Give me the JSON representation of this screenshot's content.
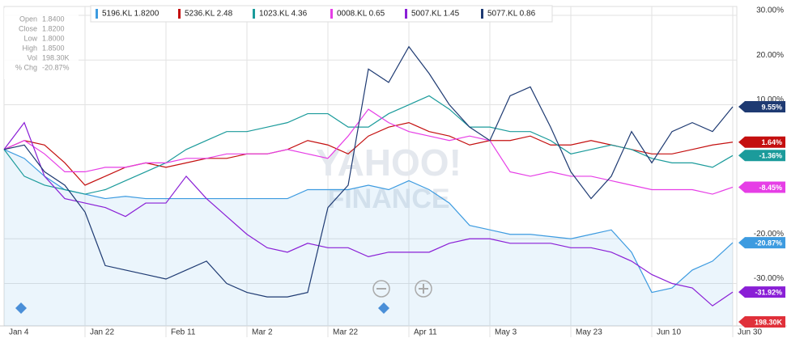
{
  "chart_data": {
    "type": "line",
    "info": [
      [
        "Open",
        "1.8400"
      ],
      [
        "Close",
        "1.8200"
      ],
      [
        "Low",
        "1.8000"
      ],
      [
        "High",
        "1.8500"
      ],
      [
        "Vol",
        "198.30K"
      ],
      [
        "% Chg",
        "-20.87%"
      ]
    ],
    "watermark": [
      "YAHOO!",
      "FINANCE"
    ],
    "volume_label": "198.30K",
    "categories": [
      "Jan 4",
      null,
      null,
      null,
      "Jan 22",
      null,
      null,
      null,
      "Feb 11",
      null,
      null,
      null,
      "Mar 2",
      null,
      null,
      null,
      "Mar 22",
      null,
      null,
      null,
      "Apr 11",
      null,
      null,
      null,
      "May 3",
      null,
      null,
      null,
      "May 23",
      null,
      null,
      null,
      "Jun 10",
      null,
      null,
      null,
      "Jun 30"
    ],
    "ylim": [
      -39.5,
      32
    ],
    "yticks": [
      {
        "value": 30,
        "label": "30.00%"
      },
      {
        "value": 20,
        "label": "20.00%"
      },
      {
        "value": 10,
        "label": "10.00%"
      },
      {
        "value": -20,
        "label": "-20.00%"
      },
      {
        "value": -30,
        "label": "-30.00%"
      }
    ],
    "grid": true,
    "area_series": 0,
    "series": [
      {
        "name": "5196.KL 1.8200",
        "color": "#3d9be0",
        "values": [
          0,
          -2,
          -6,
          -9,
          -10,
          -11,
          -10.5,
          -11,
          -11,
          -11,
          -11,
          -11,
          -11,
          -11,
          -11,
          -9,
          -9,
          -9,
          -8,
          -9,
          -7,
          -9,
          -12,
          -17,
          -18,
          -19,
          -19,
          -19.5,
          -20,
          -19,
          -18,
          -23,
          -32,
          -31,
          -27,
          -25,
          -20.87
        ],
        "value_labels": [
          null,
          null,
          null,
          null,
          null,
          null,
          null,
          null,
          null,
          null,
          null,
          null,
          null,
          null,
          null,
          null,
          null,
          null,
          null,
          null,
          null,
          null,
          null,
          null,
          null,
          null,
          null,
          null,
          null,
          null,
          null,
          null,
          null,
          null,
          null,
          null,
          "-20.87%"
        ]
      },
      {
        "name": "5236.KL 2.48",
        "color": "#c40f0f",
        "values": [
          0,
          2,
          1,
          -3,
          -8,
          -6,
          -4,
          -3,
          -4,
          -3,
          -2,
          -2,
          -1,
          -1,
          0,
          2,
          1,
          -1,
          3,
          5,
          6,
          4,
          3,
          1,
          2,
          2,
          3,
          1,
          1,
          2,
          1,
          0,
          -1,
          -1,
          0,
          1,
          1.64
        ],
        "value_labels": [
          null,
          null,
          null,
          null,
          null,
          null,
          null,
          null,
          null,
          null,
          null,
          null,
          null,
          null,
          null,
          null,
          null,
          null,
          null,
          null,
          null,
          null,
          null,
          null,
          null,
          null,
          null,
          null,
          null,
          null,
          null,
          null,
          null,
          null,
          null,
          null,
          "1.64%"
        ]
      },
      {
        "name": "1023.KL 4.36",
        "color": "#1b9b9b",
        "values": [
          0,
          -6,
          -8,
          -9,
          -10,
          -9,
          -7,
          -5,
          -3,
          0,
          2,
          4,
          4,
          5,
          6,
          8,
          8,
          5,
          5,
          8,
          10,
          12,
          9,
          5,
          5,
          4,
          4,
          2,
          -1,
          0,
          1,
          0,
          -2,
          -3,
          -3,
          -4,
          -1.36
        ],
        "value_labels": [
          null,
          null,
          null,
          null,
          null,
          null,
          null,
          null,
          null,
          null,
          null,
          null,
          null,
          null,
          null,
          null,
          null,
          null,
          null,
          null,
          null,
          null,
          null,
          null,
          null,
          null,
          null,
          null,
          null,
          null,
          null,
          null,
          null,
          null,
          null,
          null,
          "-1.36%"
        ]
      },
      {
        "name": "0008.KL 0.65",
        "color": "#e63ee6",
        "values": [
          0,
          2,
          -1,
          -5,
          -5,
          -4,
          -4,
          -3,
          -3,
          -2,
          -2,
          -1,
          -1,
          -1,
          0,
          -1,
          -2,
          3,
          9,
          6,
          4,
          3,
          2,
          3,
          2,
          -5,
          -6,
          -5,
          -6,
          -6,
          -7,
          -8,
          -9,
          -9,
          -9,
          -10,
          -8.45
        ],
        "value_labels": [
          null,
          null,
          null,
          null,
          null,
          null,
          null,
          null,
          null,
          null,
          null,
          null,
          null,
          null,
          null,
          null,
          null,
          null,
          null,
          null,
          null,
          null,
          null,
          null,
          null,
          null,
          null,
          null,
          null,
          null,
          null,
          null,
          null,
          null,
          null,
          null,
          "-8.45%"
        ]
      },
      {
        "name": "5007.KL 1.45",
        "color": "#8a1fd6",
        "values": [
          0,
          6,
          -6,
          -11,
          -12,
          -13,
          -15,
          -12,
          -12,
          -6,
          -11,
          -15,
          -19,
          -22,
          -23,
          -21,
          -22,
          -22,
          -24,
          -23,
          -23,
          -23,
          -21,
          -20,
          -20,
          -21,
          -21,
          -21,
          -22,
          -22,
          -23,
          -25,
          -28,
          -30,
          -31,
          -35,
          -31.92
        ],
        "value_labels": [
          null,
          null,
          null,
          null,
          null,
          null,
          null,
          null,
          null,
          null,
          null,
          null,
          null,
          null,
          null,
          null,
          null,
          null,
          null,
          null,
          null,
          null,
          null,
          null,
          null,
          null,
          null,
          null,
          null,
          null,
          null,
          null,
          null,
          null,
          null,
          null,
          "-31.92%"
        ]
      },
      {
        "name": "5077.KL 0.86",
        "color": "#1e3a72",
        "values": [
          0,
          1,
          -5,
          -8,
          -14,
          -26,
          -27,
          -28,
          -29,
          -27,
          -25,
          -30,
          -32,
          -33,
          -33,
          -32,
          -13,
          -8,
          18,
          15,
          23,
          17,
          10,
          5,
          2,
          12,
          14,
          5,
          -5,
          -11,
          -6,
          4,
          -3,
          4,
          6,
          4,
          9.55
        ],
        "value_labels": [
          null,
          null,
          null,
          null,
          null,
          null,
          null,
          null,
          null,
          null,
          null,
          null,
          null,
          null,
          null,
          null,
          null,
          null,
          null,
          null,
          null,
          null,
          null,
          null,
          null,
          null,
          null,
          null,
          null,
          null,
          null,
          null,
          null,
          null,
          null,
          null,
          "9.55%"
        ]
      }
    ]
  }
}
